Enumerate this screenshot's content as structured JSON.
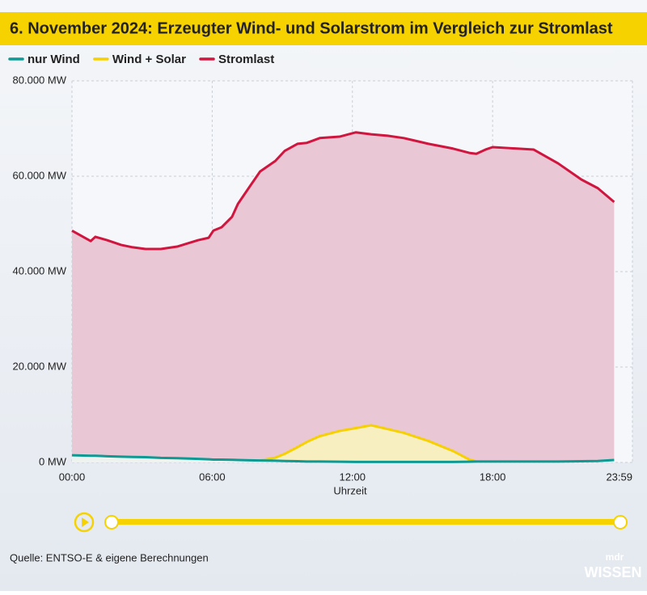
{
  "chart_data": {
    "type": "line",
    "title": "6. November 2024: Erzeugter Wind- und Solarstrom im Vergleich zur Stromlast",
    "x_label": "Uhrzeit",
    "x": [
      0,
      0.8,
      1,
      1.5,
      2.1,
      2.6,
      3.15,
      3.8,
      4.5,
      5.4,
      5.85,
      6.05,
      6.4,
      6.85,
      7.1,
      7.6,
      8.05,
      8.7,
      9.1,
      9.65,
      10.05,
      10.6,
      11.45,
      12.15,
      12.8,
      13.5,
      14.2,
      15.25,
      16.3,
      17,
      17.3,
      17.7,
      18,
      18.7,
      19.75,
      20.8,
      21.8,
      22.5,
      23.2
    ],
    "series": [
      {
        "name": "nur Wind",
        "color": "#0e9a93",
        "values": [
          1500,
          1400,
          1400,
          1300,
          1200,
          1150,
          1100,
          950,
          900,
          750,
          650,
          600,
          600,
          550,
          500,
          450,
          400,
          350,
          300,
          250,
          200,
          200,
          150,
          100,
          100,
          100,
          100,
          100,
          100,
          150,
          200,
          200,
          200,
          200,
          200,
          200,
          250,
          300,
          500
        ]
      },
      {
        "name": "Wind + Solar",
        "color": "#f6d000",
        "values": [
          null,
          null,
          null,
          null,
          null,
          null,
          null,
          null,
          null,
          null,
          null,
          null,
          null,
          null,
          null,
          null,
          400,
          1000,
          1800,
          3200,
          4300,
          5500,
          6600,
          7200,
          7800,
          7000,
          6200,
          4500,
          2400,
          600,
          200,
          null,
          null,
          null,
          null,
          null,
          null,
          null,
          null
        ]
      },
      {
        "name": "Stromlast",
        "color": "#d0163f",
        "values": [
          48600,
          46400,
          47300,
          46600,
          45600,
          45100,
          44750,
          44750,
          45250,
          46600,
          47100,
          48600,
          49300,
          51500,
          54200,
          57800,
          61000,
          63200,
          65300,
          66800,
          67000,
          68000,
          68300,
          69200,
          68800,
          68500,
          68000,
          66800,
          65800,
          64900,
          64700,
          65600,
          66100,
          65900,
          65600,
          62700,
          59300,
          57500,
          54600
        ]
      }
    ],
    "xlim": [
      0,
      23.983
    ],
    "xticks": [
      {
        "value": 0,
        "label": "00:00"
      },
      {
        "value": 6,
        "label": "06:00"
      },
      {
        "value": 12,
        "label": "12:00"
      },
      {
        "value": 18,
        "label": "18:00"
      },
      {
        "value": 23.983,
        "label": "23:59"
      }
    ],
    "ylim": [
      0,
      80000
    ],
    "yticks": [
      {
        "value": 0,
        "label": "0 MW"
      },
      {
        "value": 20000,
        "label": "20.000 MW"
      },
      {
        "value": 40000,
        "label": "40.000 MW"
      },
      {
        "value": 60000,
        "label": "60.000 MW"
      },
      {
        "value": 80000,
        "label": "80.000 MW"
      }
    ],
    "grid": true,
    "source": "Quelle: ENTSO-E & eigene Berechnungen",
    "logo": {
      "top": "mdr",
      "bottom": "WISSEN"
    }
  }
}
